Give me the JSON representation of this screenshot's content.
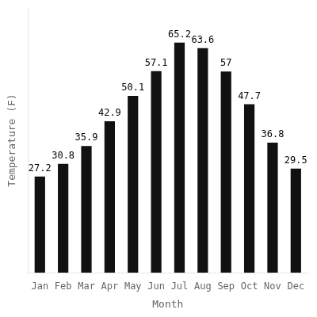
{
  "chart_data": {
    "type": "bar",
    "categories": [
      "Jan",
      "Feb",
      "Mar",
      "Apr",
      "May",
      "Jun",
      "Jul",
      "Aug",
      "Sep",
      "Oct",
      "Nov",
      "Dec"
    ],
    "values": [
      27.2,
      30.8,
      35.9,
      42.9,
      50.1,
      57.1,
      65.2,
      63.6,
      57.0,
      47.7,
      36.8,
      29.5
    ],
    "color": "#111111",
    "xlabel": "Month",
    "ylabel": "Temperature (F)",
    "ylim": [
      0,
      75
    ],
    "grid": false,
    "data_labels": true,
    "tick_labels": "x"
  }
}
